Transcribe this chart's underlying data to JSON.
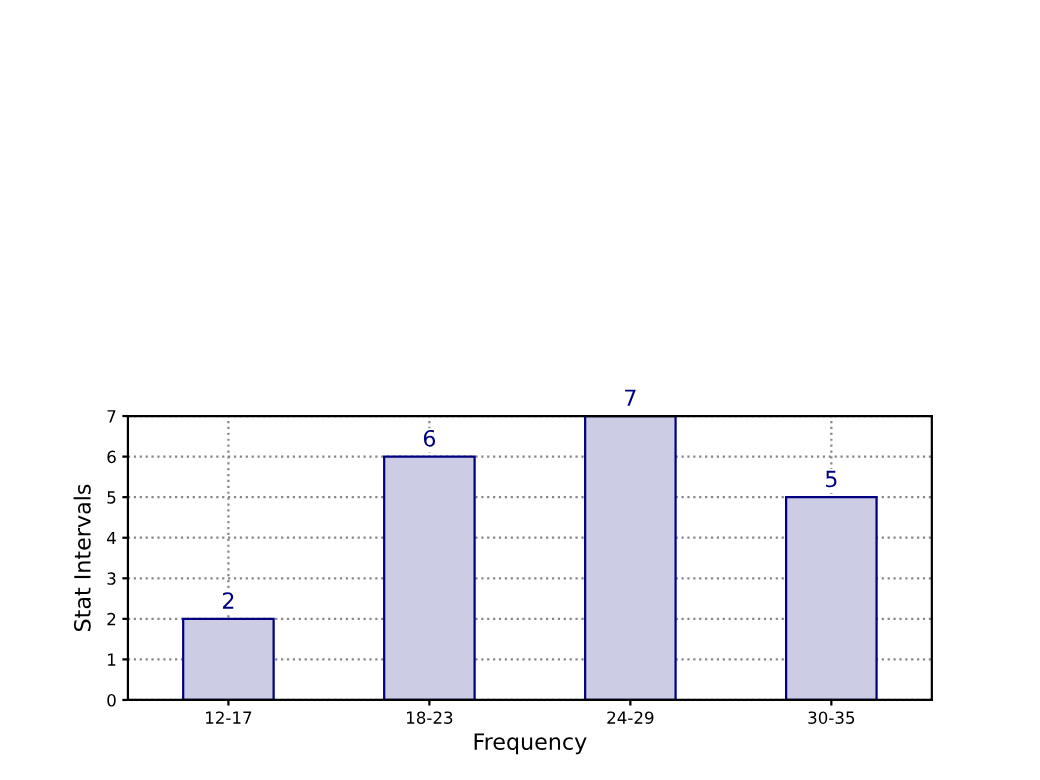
{
  "chart_data": {
    "type": "bar",
    "xlabel": "Frequency",
    "ylabel": "Stat Intervals",
    "categories": [
      "12-17",
      "18-23",
      "24-29",
      "30-35"
    ],
    "values": [
      2,
      6,
      7,
      5
    ],
    "color": "#ccccе5",
    "ylim": [
      0,
      7
    ],
    "yticks": [
      0,
      1,
      2,
      3,
      4,
      5,
      6,
      7
    ],
    "grid": true,
    "data_labels": true
  }
}
